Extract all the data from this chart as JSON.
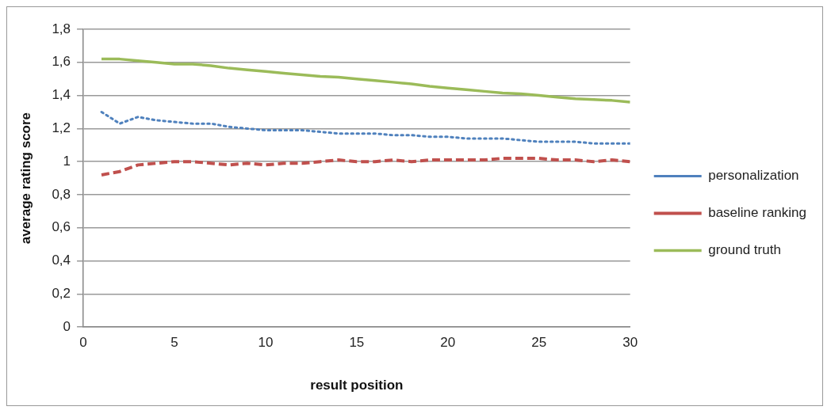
{
  "chart_data": {
    "type": "line",
    "xlabel": "result position",
    "ylabel": "average rating score",
    "x": [
      1,
      2,
      3,
      4,
      5,
      6,
      7,
      8,
      9,
      10,
      11,
      12,
      13,
      14,
      15,
      16,
      17,
      18,
      19,
      20,
      21,
      22,
      23,
      24,
      25,
      26,
      27,
      28,
      29,
      30
    ],
    "series": [
      {
        "name": "personalization",
        "color": "#4f81bd",
        "line_style": "dotted",
        "values": [
          1.3,
          1.23,
          1.27,
          1.25,
          1.24,
          1.23,
          1.23,
          1.21,
          1.2,
          1.19,
          1.19,
          1.19,
          1.18,
          1.17,
          1.17,
          1.17,
          1.16,
          1.16,
          1.15,
          1.15,
          1.14,
          1.14,
          1.14,
          1.13,
          1.12,
          1.12,
          1.12,
          1.11,
          1.11,
          1.11
        ]
      },
      {
        "name": "baseline ranking",
        "color": "#c0504d",
        "line_style": "dashed",
        "values": [
          0.92,
          0.94,
          0.98,
          0.99,
          1.0,
          1.0,
          0.99,
          0.98,
          0.99,
          0.98,
          0.99,
          0.99,
          1.0,
          1.01,
          1.0,
          1.0,
          1.01,
          1.0,
          1.01,
          1.01,
          1.01,
          1.01,
          1.02,
          1.02,
          1.02,
          1.01,
          1.01,
          1.0,
          1.01,
          1.0
        ]
      },
      {
        "name": "ground truth",
        "color": "#9bbb59",
        "line_style": "solid",
        "values": [
          1.62,
          1.62,
          1.61,
          1.6,
          1.59,
          1.59,
          1.58,
          1.565,
          1.555,
          1.545,
          1.535,
          1.525,
          1.515,
          1.51,
          1.5,
          1.49,
          1.48,
          1.47,
          1.455,
          1.445,
          1.435,
          1.425,
          1.415,
          1.41,
          1.4,
          1.39,
          1.38,
          1.375,
          1.37,
          1.36
        ]
      }
    ],
    "xlim": [
      0,
      30
    ],
    "xticks": [
      0,
      5,
      10,
      15,
      20,
      25,
      30
    ],
    "ylim": [
      0,
      1.8
    ],
    "yticks": [
      0,
      {
        "value": 0.2,
        "label": "0,2"
      },
      {
        "value": 0.4,
        "label": "0,4"
      },
      {
        "value": 0.6,
        "label": "0,6"
      },
      {
        "value": 0.8,
        "label": "0,8"
      },
      1,
      {
        "value": 1.2,
        "label": "1,2"
      },
      {
        "value": 1.4,
        "label": "1,4"
      },
      {
        "value": 1.6,
        "label": "1,6"
      },
      {
        "value": 1.8,
        "label": "1,8"
      }
    ],
    "grid": "y",
    "legend": "right",
    "marker": "none"
  }
}
